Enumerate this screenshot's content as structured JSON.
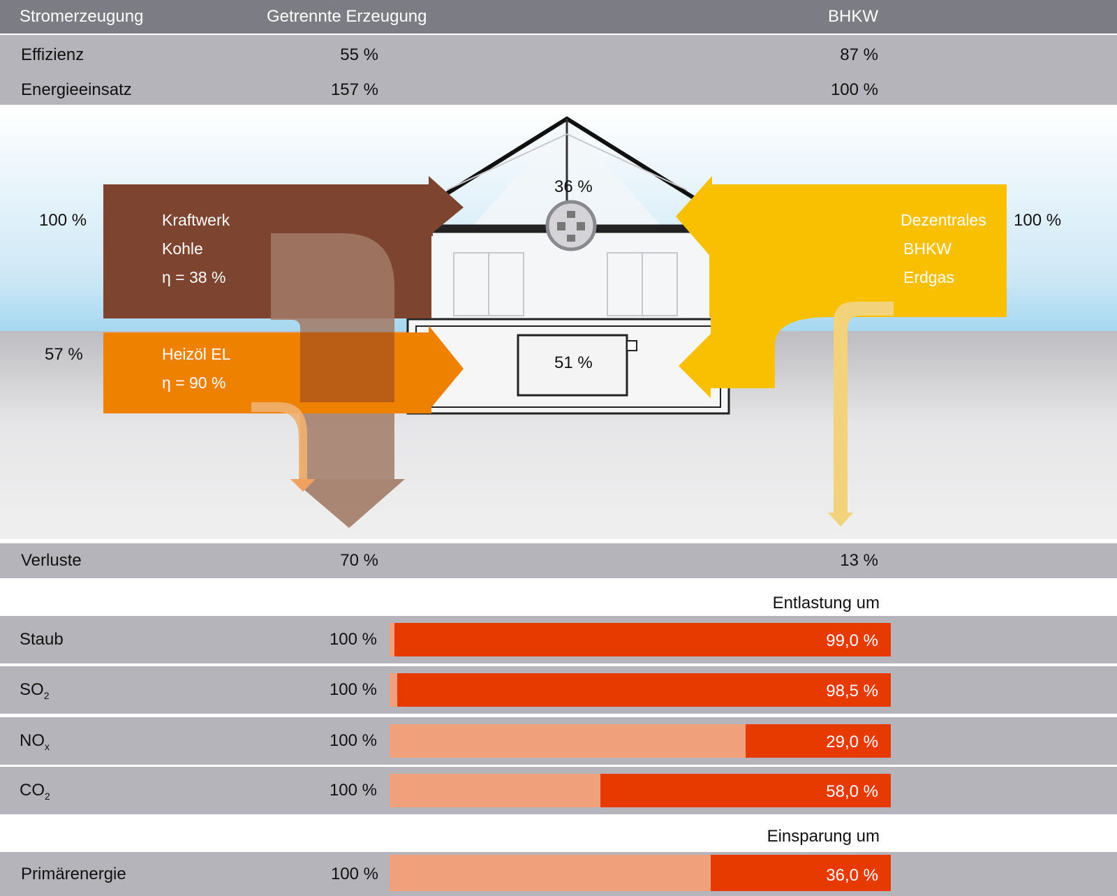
{
  "header": {
    "col1": "Stromerzeugung",
    "col2": "Getrennte Erzeugung",
    "col3": "BHKW"
  },
  "efficiency": {
    "label": "Effizienz",
    "separate": "55 %",
    "chp": "87 %"
  },
  "energy_input": {
    "label": "Energieeinsatz",
    "separate": "157 %",
    "chp": "100 %"
  },
  "diagram": {
    "coal_input": "100 %",
    "coal_lines": [
      "Kraftwerk",
      "Kohle",
      "η = 38 %"
    ],
    "oil_input": "57 %",
    "oil_lines": [
      "Heizöl EL",
      "η = 90 %"
    ],
    "chp_lines": [
      "Dezentrales",
      "BHKW",
      "Erdgas"
    ],
    "chp_input": "100 %",
    "electricity_share": "36 %",
    "heat_share": "51 %"
  },
  "losses": {
    "label": "Verluste",
    "separate": "70 %",
    "chp": "13 %"
  },
  "relief_heading": "Entlastung um",
  "emissions": [
    {
      "label": "Staub",
      "sub": "",
      "base": "100 %",
      "reduction_text": "99,0 %",
      "reduction": 0.99
    },
    {
      "label": "SO",
      "sub": "2",
      "base": "100 %",
      "reduction_text": "98,5 %",
      "reduction": 0.985
    },
    {
      "label": "NO",
      "sub": "x",
      "base": "100 %",
      "reduction_text": "29,0 %",
      "reduction": 0.29
    },
    {
      "label": "CO",
      "sub": "2",
      "base": "100 %",
      "reduction_text": "58,0 %",
      "reduction": 0.58
    }
  ],
  "savings_heading": "Einsparung um",
  "primary_energy": {
    "label": "Primärenergie",
    "base": "100 %",
    "reduction_text": "36,0 %",
    "reduction": 0.36
  },
  "colors": {
    "coal": "#7d4530",
    "oil": "#ee8200",
    "chp": "#f8c000",
    "reduction": "#e63a00",
    "remaining": "#f0a07a",
    "band": "#b4b4ba",
    "header": "#7c7c84"
  }
}
